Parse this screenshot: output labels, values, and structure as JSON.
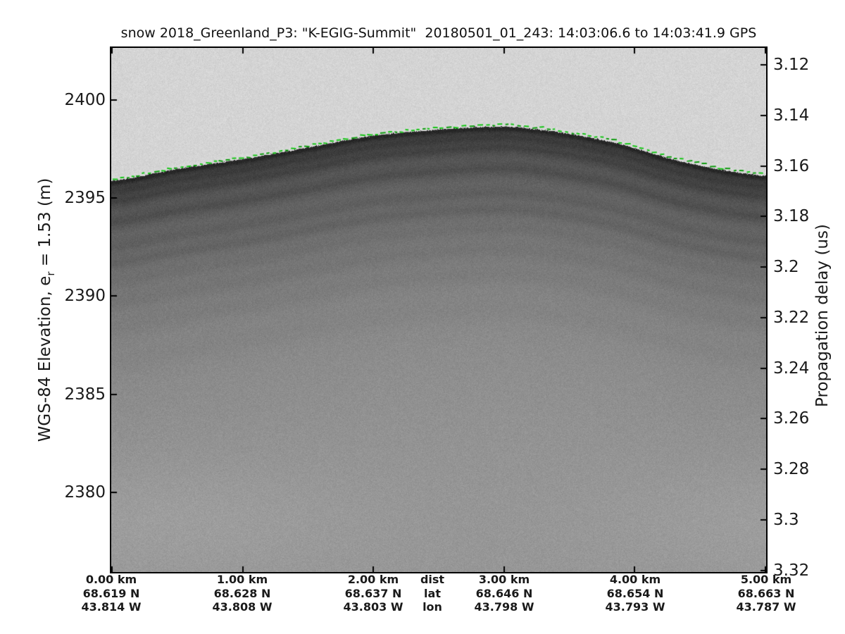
{
  "title": "snow 2018_Greenland_P3: \"K-EGIG-Summit\"  20180501_01_243: 14:03:06.6 to 14:03:41.9 GPS",
  "left_axis": {
    "label_pre": "WGS-84 Elevation, e",
    "label_sub": "r",
    "label_post": " = 1.53 (m)",
    "ticks": [
      "2400",
      "2395",
      "2390",
      "2385",
      "2380"
    ]
  },
  "right_axis": {
    "label": "Propagation delay (us)",
    "ticks": [
      "3.12",
      "3.14",
      "3.16",
      "3.18",
      "3.2",
      "3.22",
      "3.24",
      "3.26",
      "3.28",
      "3.3",
      "3.32"
    ]
  },
  "x_axis": {
    "row_labels": {
      "dist": "dist",
      "lat": "lat",
      "lon": "lon"
    },
    "columns": [
      {
        "dist": "0.00 km",
        "lat": "68.619 N",
        "lon": "43.814 W"
      },
      {
        "dist": "1.00 km",
        "lat": "68.628 N",
        "lon": "43.808 W"
      },
      {
        "dist": "2.00 km",
        "lat": "68.637 N",
        "lon": "43.803 W"
      },
      {
        "dist": "3.00 km",
        "lat": "68.646 N",
        "lon": "43.798 W"
      },
      {
        "dist": "4.00 km",
        "lat": "68.654 N",
        "lon": "43.793 W"
      },
      {
        "dist": "5.00 km",
        "lat": "68.663 N",
        "lon": "43.787 W"
      }
    ]
  },
  "chart_data": {
    "type": "heatmap",
    "title": "snow 2018_Greenland_P3: \"K-EGIG-Summit\"  20180501_01_243: 14:03:06.6 to 14:03:41.9 GPS",
    "x_range_km": [
      0,
      5
    ],
    "x_ticks_km": [
      0,
      1,
      2,
      3,
      4,
      5
    ],
    "x_tick_rows": {
      "distance": [
        "0.00 km",
        "1.00 km",
        "2.00 km",
        "3.00 km",
        "4.00 km",
        "5.00 km"
      ],
      "latitude": [
        "68.619 N",
        "68.628 N",
        "68.637 N",
        "68.646 N",
        "68.654 N",
        "68.663 N"
      ],
      "longitude": [
        "43.814 W",
        "43.808 W",
        "43.803 W",
        "43.798 W",
        "43.793 W",
        "43.787 W"
      ]
    },
    "y_axis_left": {
      "label": "WGS-84 Elevation, e_r = 1.53 (m)",
      "ticks_m": [
        2400,
        2395,
        2390,
        2385,
        2380
      ],
      "range_m": [
        2375.9,
        2402.7
      ]
    },
    "y_axis_right": {
      "label": "Propagation delay (us)",
      "ticks_us": [
        3.12,
        3.14,
        3.16,
        3.18,
        3.2,
        3.22,
        3.24,
        3.26,
        3.28,
        3.3,
        3.32
      ],
      "range_us": [
        3.113,
        3.321
      ]
    },
    "surface_line": {
      "name": "tracked snow surface",
      "style": "dashed",
      "color": "#16c516",
      "points_km": [
        0.0,
        0.5,
        1.0,
        1.5,
        2.0,
        2.5,
        2.9,
        3.2,
        3.8,
        4.4,
        5.0
      ],
      "elevation_m": [
        2395.9,
        2396.5,
        2397.0,
        2397.6,
        2398.2,
        2398.5,
        2398.65,
        2398.55,
        2397.9,
        2396.8,
        2396.15
      ]
    },
    "image_content": "grayscale snow-radar echogram: bright noisy air above surface, dark firn return band at surface, layered internal reflections fading to uniform gray with depth"
  },
  "echogram_render": {
    "air_level": 212,
    "air_noise": 13,
    "base": 56,
    "range": 96,
    "decay": 150,
    "noise": 12,
    "glow": 9,
    "green": "#16c516",
    "green_dark": "#0d9b0d",
    "layers": [
      [
        3,
        -20,
        4
      ],
      [
        16,
        -7,
        5
      ],
      [
        30,
        -8,
        5
      ],
      [
        44,
        5,
        6
      ],
      [
        60,
        -9,
        6
      ],
      [
        78,
        4,
        7
      ],
      [
        95,
        -6,
        7
      ],
      [
        118,
        -9,
        8
      ],
      [
        145,
        -4,
        9
      ],
      [
        175,
        -5,
        11
      ],
      [
        210,
        -4,
        13
      ],
      [
        260,
        -3,
        16
      ]
    ]
  }
}
